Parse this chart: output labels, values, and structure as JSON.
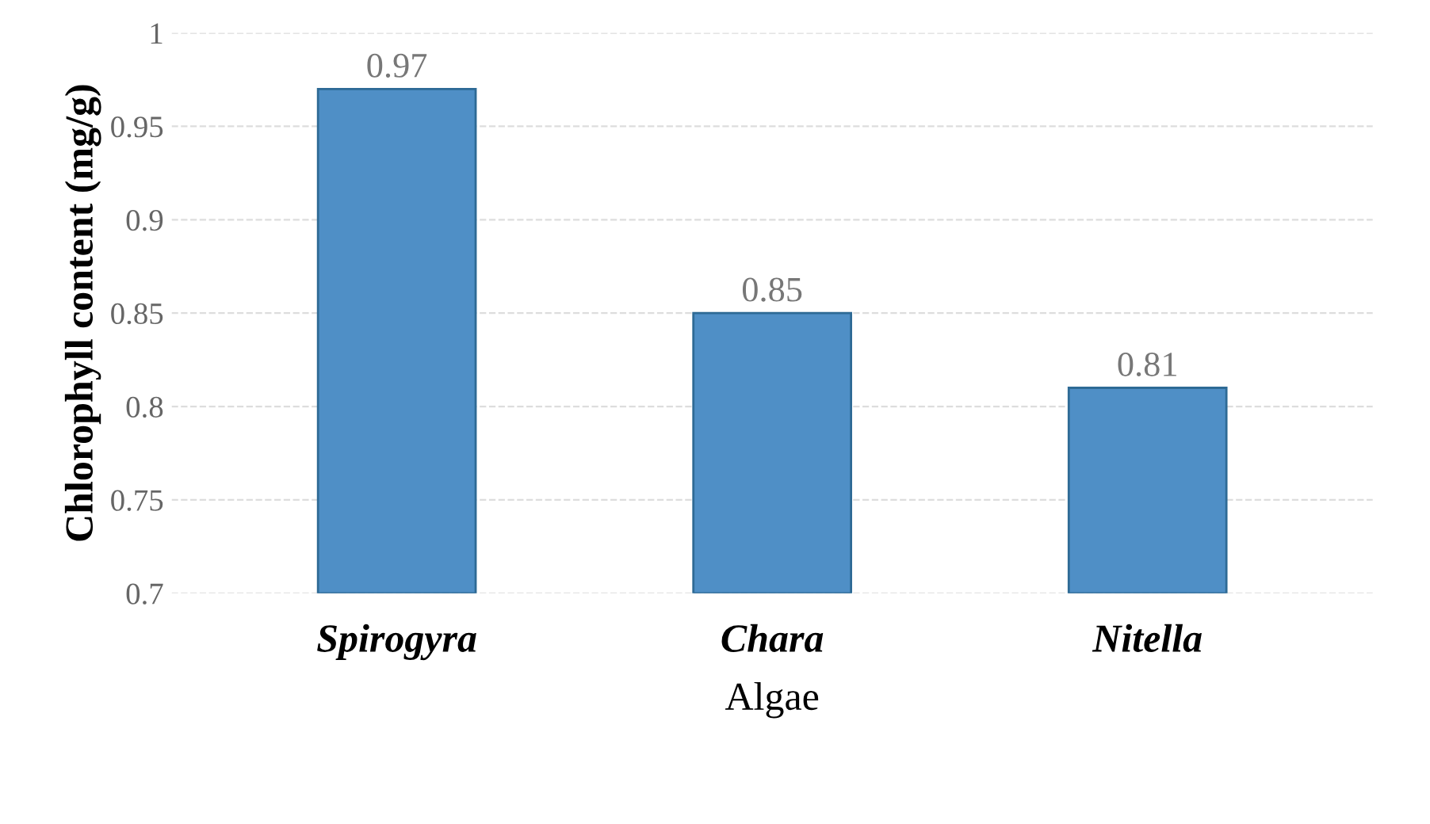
{
  "chart_data": {
    "type": "bar",
    "xlabel": "Algae",
    "ylabel": "Chlorophyll content (mg/g)",
    "categories": [
      "Spirogyra",
      "Chara",
      "Nitella"
    ],
    "values": [
      0.97,
      0.85,
      0.81
    ],
    "color": "#4f8fc6",
    "ylim": [
      0.7,
      1
    ],
    "yticks": [
      0.7,
      0.75,
      0.8,
      0.85,
      0.9,
      0.95,
      1
    ],
    "grid": "y",
    "data_labels": true
  }
}
